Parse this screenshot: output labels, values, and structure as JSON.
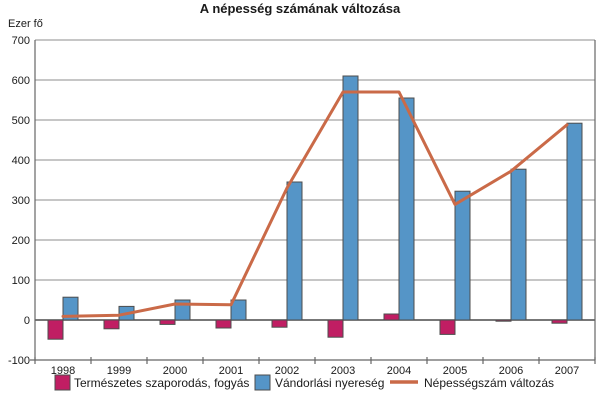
{
  "title": "A népesség számának változása",
  "colors": {
    "natural_bar": "#C01E63",
    "migration_bar": "#5595C7",
    "population_line": "#CA6A48",
    "grid": "#8C8C8C",
    "axis": "#666666",
    "zero_line": "#4A4A4A",
    "bar_stroke": "#4D4D4D",
    "text": "#1A1A1A",
    "background": "#FFFFFF"
  },
  "chart_data": {
    "type": "bar",
    "title": "A népesség számának változása",
    "xlabel": "",
    "ylabel": "Ezer fő",
    "ylim": [
      -100,
      700
    ],
    "yticks": [
      700,
      600,
      500,
      400,
      300,
      200,
      100,
      0,
      -100
    ],
    "grid": true,
    "legend_position": "bottom",
    "categories": [
      "1998",
      "1999",
      "2000",
      "2001",
      "2002",
      "2003",
      "2004",
      "2005",
      "2006",
      "2007"
    ],
    "series": [
      {
        "name": "Természetes szaporodás, fogyás",
        "type": "bar",
        "color_key": "natural_bar",
        "values": [
          -48,
          -22,
          -11,
          -20,
          -18,
          -43,
          15,
          -36,
          -3,
          -8
        ]
      },
      {
        "name": "Vándorlási nyereség",
        "type": "bar",
        "color_key": "migration_bar",
        "values": [
          57,
          34,
          50,
          50,
          345,
          610,
          555,
          322,
          377,
          492
        ]
      },
      {
        "name": "Népességszám változás",
        "type": "line",
        "color_key": "population_line",
        "values": [
          9,
          12,
          40,
          38,
          330,
          570,
          570,
          289,
          372,
          488
        ]
      }
    ]
  },
  "legend": {
    "items": [
      {
        "label": "Természetes szaporodás, fogyás",
        "swatch": "square",
        "color_key": "natural_bar"
      },
      {
        "label": "Vándorlási nyereség",
        "swatch": "square",
        "color_key": "migration_bar"
      },
      {
        "label": "Népességszám változás",
        "swatch": "line",
        "color_key": "population_line"
      }
    ]
  }
}
